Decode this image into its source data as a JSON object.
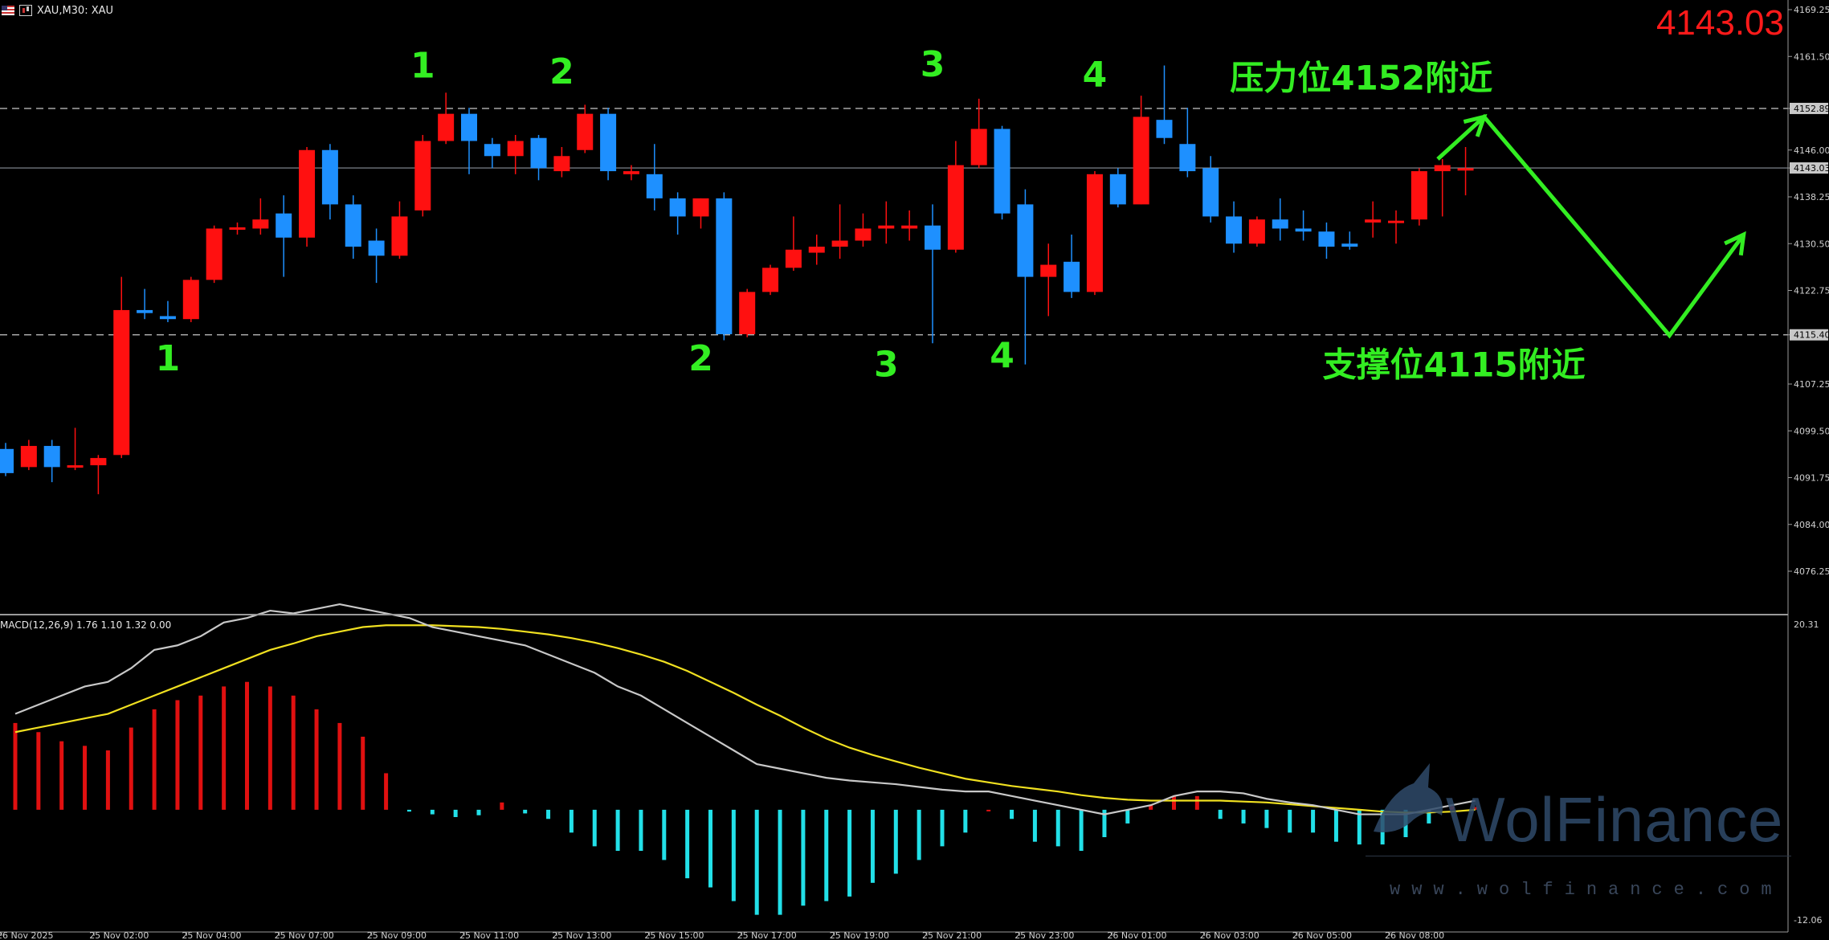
{
  "header": {
    "symbol_label": "XAU,M30:  XAU"
  },
  "current_price_label": "4143.03",
  "macd_label": "MACD(12,26,9) 1.76 1.10 1.32 0.00",
  "watermark": {
    "name": "WolFinance",
    "url": "www.wolfinance.com"
  },
  "colors": {
    "bull": "#ff1010",
    "bear": "#1e90ff",
    "annotation": "#33ee22",
    "macd_pos": "#e01010",
    "macd_neg": "#22e0e8",
    "signal": "#f0e020",
    "macd_line": "#c8c8c8",
    "price_big": "#ff1a1a"
  },
  "chart_data": [
    {
      "type": "candlestick",
      "timeframe": "M30",
      "y_ticks": [
        "4169.25",
        "4161.50",
        "4152.89",
        "4146.00",
        "4143.03",
        "4138.25",
        "4130.50",
        "4122.75",
        "4115.40",
        "4107.25",
        "4099.50",
        "4091.75",
        "4084.00",
        "4076.25"
      ],
      "highlighted_ticks": [
        "4152.89",
        "4143.03",
        "4115.40"
      ],
      "x_labels": [
        "26 Nov 2025",
        "25 Nov 02:00",
        "25 Nov 04:00",
        "25 Nov 07:00",
        "25 Nov 09:00",
        "25 Nov 11:00",
        "25 Nov 13:00",
        "25 Nov 15:00",
        "25 Nov 17:00",
        "25 Nov 19:00",
        "25 Nov 21:00",
        "25 Nov 23:00",
        "26 Nov 01:00",
        "26 Nov 03:00",
        "26 Nov 05:00",
        "26 Nov 08:00"
      ],
      "candles": [
        {
          "o": 4096.5,
          "h": 4097.5,
          "l": 4092.0,
          "c": 4092.5
        },
        {
          "o": 4093.5,
          "h": 4098.0,
          "l": 4093.0,
          "c": 4097.0
        },
        {
          "o": 4097.0,
          "h": 4098.0,
          "l": 4091.0,
          "c": 4093.5
        },
        {
          "o": 4093.5,
          "h": 4100.0,
          "l": 4093.0,
          "c": 4093.8
        },
        {
          "o": 4093.8,
          "h": 4095.5,
          "l": 4089.0,
          "c": 4095.0
        },
        {
          "o": 4095.5,
          "h": 4125.0,
          "l": 4095.0,
          "c": 4119.5
        },
        {
          "o": 4119.5,
          "h": 4123.0,
          "l": 4118.0,
          "c": 4119.0
        },
        {
          "o": 4118.5,
          "h": 4121.0,
          "l": 4117.5,
          "c": 4118.0
        },
        {
          "o": 4118.0,
          "h": 4125.0,
          "l": 4117.5,
          "c": 4124.5
        },
        {
          "o": 4124.5,
          "h": 4133.5,
          "l": 4124.0,
          "c": 4133.0
        },
        {
          "o": 4133.0,
          "h": 4134.0,
          "l": 4132.0,
          "c": 4133.2
        },
        {
          "o": 4133.0,
          "h": 4138.0,
          "l": 4132.0,
          "c": 4134.5
        },
        {
          "o": 4135.5,
          "h": 4138.5,
          "l": 4125.0,
          "c": 4131.5
        },
        {
          "o": 4131.5,
          "h": 4146.5,
          "l": 4130.0,
          "c": 4146.0
        },
        {
          "o": 4146.0,
          "h": 4147.0,
          "l": 4134.5,
          "c": 4137.0
        },
        {
          "o": 4137.0,
          "h": 4138.5,
          "l": 4128.0,
          "c": 4130.0
        },
        {
          "o": 4131.0,
          "h": 4133.0,
          "l": 4124.0,
          "c": 4128.5
        },
        {
          "o": 4128.5,
          "h": 4137.5,
          "l": 4128.0,
          "c": 4135.0
        },
        {
          "o": 4136.0,
          "h": 4148.5,
          "l": 4135.0,
          "c": 4147.5
        },
        {
          "o": 4147.5,
          "h": 4155.5,
          "l": 4147.0,
          "c": 4152.0
        },
        {
          "o": 4152.0,
          "h": 4153.0,
          "l": 4142.0,
          "c": 4147.5
        },
        {
          "o": 4147.0,
          "h": 4148.0,
          "l": 4143.0,
          "c": 4145.0
        },
        {
          "o": 4145.0,
          "h": 4148.5,
          "l": 4142.0,
          "c": 4147.5
        },
        {
          "o": 4148.0,
          "h": 4148.5,
          "l": 4141.0,
          "c": 4143.0
        },
        {
          "o": 4142.5,
          "h": 4146.5,
          "l": 4141.5,
          "c": 4145.0
        },
        {
          "o": 4146.0,
          "h": 4153.5,
          "l": 4145.5,
          "c": 4152.0
        },
        {
          "o": 4152.0,
          "h": 4153.0,
          "l": 4141.0,
          "c": 4142.5
        },
        {
          "o": 4142.0,
          "h": 4143.5,
          "l": 4141.0,
          "c": 4142.5
        },
        {
          "o": 4142.0,
          "h": 4147.0,
          "l": 4136.0,
          "c": 4138.0
        },
        {
          "o": 4138.0,
          "h": 4139.0,
          "l": 4132.0,
          "c": 4135.0
        },
        {
          "o": 4135.0,
          "h": 4138.0,
          "l": 4133.0,
          "c": 4138.0
        },
        {
          "o": 4138.0,
          "h": 4139.0,
          "l": 4114.5,
          "c": 4115.5
        },
        {
          "o": 4115.5,
          "h": 4123.0,
          "l": 4115.0,
          "c": 4122.5
        },
        {
          "o": 4122.5,
          "h": 4127.0,
          "l": 4122.0,
          "c": 4126.5
        },
        {
          "o": 4126.5,
          "h": 4135.0,
          "l": 4126.0,
          "c": 4129.5
        },
        {
          "o": 4129.0,
          "h": 4132.0,
          "l": 4127.0,
          "c": 4130.0
        },
        {
          "o": 4130.0,
          "h": 4137.0,
          "l": 4128.0,
          "c": 4131.0
        },
        {
          "o": 4131.0,
          "h": 4135.5,
          "l": 4130.0,
          "c": 4133.0
        },
        {
          "o": 4133.0,
          "h": 4137.5,
          "l": 4130.5,
          "c": 4133.5
        },
        {
          "o": 4133.0,
          "h": 4136.0,
          "l": 4131.0,
          "c": 4133.5
        },
        {
          "o": 4133.5,
          "h": 4137.0,
          "l": 4114.0,
          "c": 4129.5
        },
        {
          "o": 4129.5,
          "h": 4147.5,
          "l": 4129.0,
          "c": 4143.5
        },
        {
          "o": 4143.5,
          "h": 4154.5,
          "l": 4143.0,
          "c": 4149.5
        },
        {
          "o": 4149.5,
          "h": 4150.0,
          "l": 4134.5,
          "c": 4135.5
        },
        {
          "o": 4137.0,
          "h": 4139.5,
          "l": 4110.5,
          "c": 4125.0
        },
        {
          "o": 4125.0,
          "h": 4130.5,
          "l": 4118.5,
          "c": 4127.0
        },
        {
          "o": 4127.5,
          "h": 4132.0,
          "l": 4121.5,
          "c": 4122.5
        },
        {
          "o": 4122.5,
          "h": 4142.5,
          "l": 4122.0,
          "c": 4142.0
        },
        {
          "o": 4142.0,
          "h": 4143.0,
          "l": 4136.5,
          "c": 4137.0
        },
        {
          "o": 4137.0,
          "h": 4155.0,
          "l": 4137.0,
          "c": 4151.5
        },
        {
          "o": 4151.0,
          "h": 4160.0,
          "l": 4147.0,
          "c": 4148.0
        },
        {
          "o": 4147.0,
          "h": 4153.0,
          "l": 4141.5,
          "c": 4142.5
        },
        {
          "o": 4143.0,
          "h": 4145.0,
          "l": 4134.0,
          "c": 4135.0
        },
        {
          "o": 4135.0,
          "h": 4137.5,
          "l": 4129.0,
          "c": 4130.5
        },
        {
          "o": 4130.5,
          "h": 4135.0,
          "l": 4130.0,
          "c": 4134.5
        },
        {
          "o": 4134.5,
          "h": 4138.0,
          "l": 4131.0,
          "c": 4133.0
        },
        {
          "o": 4133.0,
          "h": 4136.0,
          "l": 4131.0,
          "c": 4132.5
        },
        {
          "o": 4132.5,
          "h": 4134.0,
          "l": 4128.0,
          "c": 4130.0
        },
        {
          "o": 4130.5,
          "h": 4132.5,
          "l": 4129.5,
          "c": 4130.0
        },
        {
          "o": 4134.0,
          "h": 4137.5,
          "l": 4131.5,
          "c": 4134.5
        },
        {
          "o": 4134.0,
          "h": 4136.0,
          "l": 4130.5,
          "c": 4134.3
        },
        {
          "o": 4134.5,
          "h": 4143.0,
          "l": 4133.5,
          "c": 4142.5
        },
        {
          "o": 4142.5,
          "h": 4144.5,
          "l": 4135.0,
          "c": 4143.5
        },
        {
          "o": 4143.0,
          "h": 4146.5,
          "l": 4138.5,
          "c": 4143.0
        }
      ],
      "levels": [
        {
          "value": 4152.89,
          "style": "dashed"
        },
        {
          "value": 4143.03,
          "style": "solid"
        },
        {
          "value": 4115.4,
          "style": "dashed"
        }
      ],
      "annotations": [
        {
          "text": "1",
          "candle": 18,
          "price": 4158.0
        },
        {
          "text": "2",
          "candle": 24,
          "price": 4157.0
        },
        {
          "text": "3",
          "candle": 40,
          "price": 4158.2
        },
        {
          "text": "4",
          "candle": 47,
          "price": 4156.5
        },
        {
          "text": "1",
          "candle": 7,
          "price": 4109.5
        },
        {
          "text": "2",
          "candle": 30,
          "price": 4109.5
        },
        {
          "text": "3",
          "candle": 38,
          "price": 4108.5
        },
        {
          "text": "4",
          "candle": 43,
          "price": 4110.0
        },
        {
          "text": "压力位4152附近",
          "x_candle": 58.5,
          "price": 4156.0
        },
        {
          "text": "支撑位4115附近",
          "x_candle": 62.5,
          "price": 4108.5
        }
      ],
      "projection": [
        {
          "candle": 61.8,
          "price": 4144.5
        },
        {
          "candle": 63.8,
          "price": 4151.5
        },
        {
          "candle": 71.8,
          "price": 4115.3
        },
        {
          "candle": 75.0,
          "price": 4132.0
        }
      ]
    },
    {
      "type": "macd",
      "params": "12,26,9",
      "y_ticks": [
        "20.31",
        "-12.06"
      ],
      "histogram": [
        9.5,
        8.5,
        7.5,
        7.0,
        6.5,
        9.0,
        11.0,
        12.0,
        12.5,
        13.5,
        14.0,
        13.5,
        12.5,
        11.0,
        9.5,
        8.0,
        4.0,
        -0.2,
        -0.5,
        -0.8,
        -0.6,
        0.8,
        -0.4,
        -1.0,
        -2.5,
        -4.0,
        -4.5,
        -4.5,
        -5.5,
        -7.5,
        -8.5,
        -10.0,
        -11.5,
        -11.5,
        -10.5,
        -10.0,
        -9.5,
        -8.0,
        -7.0,
        -5.5,
        -4.0,
        -2.5,
        0,
        -1.0,
        -3.5,
        -4.0,
        -4.5,
        -3.0,
        -1.5,
        0.5,
        1.5,
        1.5,
        -1.0,
        -1.5,
        -2.0,
        -2.5,
        -2.5,
        -3.5,
        -3.8,
        -3.8,
        -3.0,
        -1.5,
        0.4,
        0.3
      ],
      "macd_line": [
        10.5,
        11.5,
        12.5,
        13.5,
        14.0,
        15.5,
        17.5,
        18.0,
        19.0,
        20.5,
        21.0,
        21.8,
        21.5,
        22.0,
        22.5,
        22.0,
        21.5,
        21.0,
        20.0,
        19.5,
        19.0,
        18.5,
        18.0,
        17.0,
        16.0,
        15.0,
        13.5,
        12.5,
        11.0,
        9.5,
        8.0,
        6.5,
        5.0,
        4.5,
        4.0,
        3.5,
        3.2,
        3.0,
        2.8,
        2.5,
        2.2,
        2.0,
        2.0,
        1.5,
        1.0,
        0.5,
        0,
        -0.5,
        0,
        0.5,
        1.5,
        2.0,
        2.0,
        1.8,
        1.2,
        0.8,
        0.5,
        0,
        -0.5,
        -0.5,
        -0.5,
        0,
        0.5,
        1.0
      ],
      "signal_line": [
        8.5,
        9.0,
        9.5,
        10.0,
        10.5,
        11.5,
        12.5,
        13.5,
        14.5,
        15.5,
        16.5,
        17.5,
        18.2,
        19.0,
        19.5,
        20.0,
        20.2,
        20.2,
        20.2,
        20.1,
        20.0,
        19.8,
        19.5,
        19.2,
        18.8,
        18.3,
        17.7,
        17.0,
        16.2,
        15.2,
        14.0,
        12.8,
        11.5,
        10.3,
        9.0,
        7.8,
        6.8,
        6.0,
        5.3,
        4.6,
        4.0,
        3.4,
        3.0,
        2.6,
        2.3,
        2.0,
        1.6,
        1.3,
        1.1,
        1.0,
        1.0,
        1.0,
        1.0,
        0.9,
        0.8,
        0.6,
        0.4,
        0.2,
        0,
        -0.2,
        -0.3,
        -0.3,
        -0.2,
        0
      ]
    }
  ]
}
